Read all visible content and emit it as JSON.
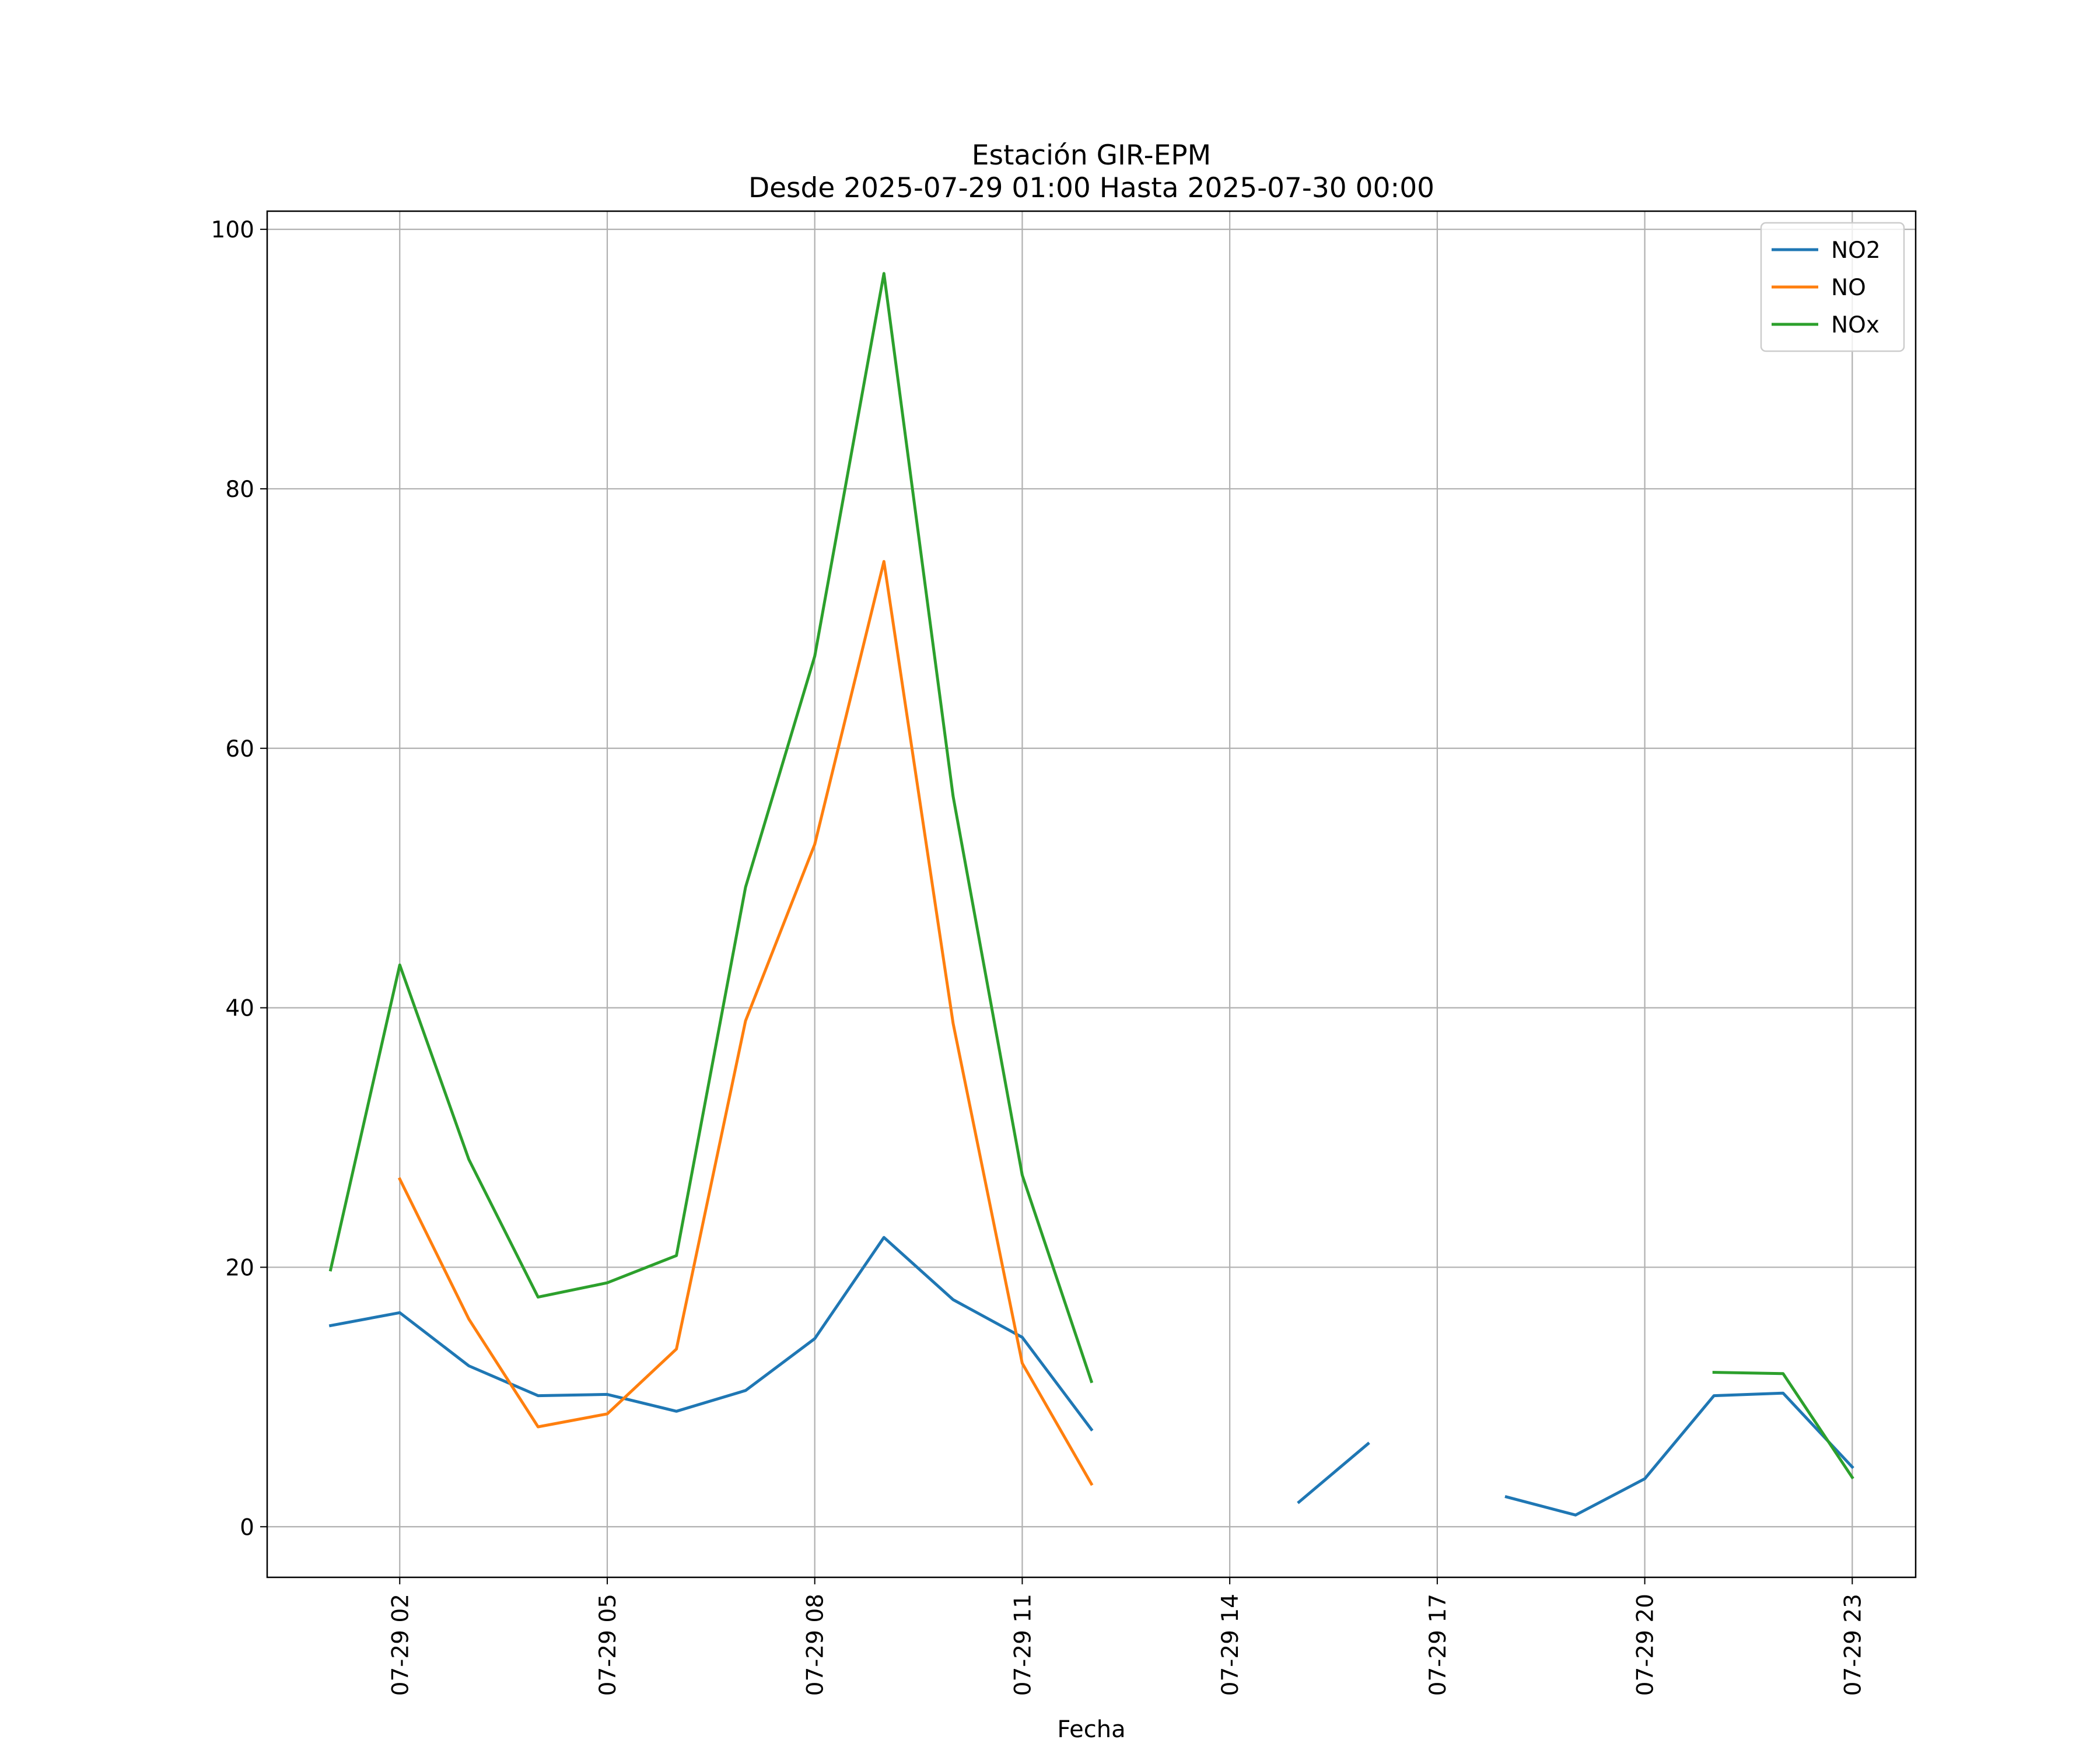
{
  "chart_data": {
    "type": "line",
    "title": "Estación GIR-EPM",
    "subtitle": "Desde 2025-07-29 01:00 Hasta 2025-07-30 00:00",
    "xlabel": "Fecha",
    "ylabel": "",
    "x": [
      "2025-07-29 01:00",
      "2025-07-29 02:00",
      "2025-07-29 03:00",
      "2025-07-29 04:00",
      "2025-07-29 05:00",
      "2025-07-29 06:00",
      "2025-07-29 07:00",
      "2025-07-29 08:00",
      "2025-07-29 09:00",
      "2025-07-29 10:00",
      "2025-07-29 11:00",
      "2025-07-29 12:00",
      "2025-07-29 13:00",
      "2025-07-29 14:00",
      "2025-07-29 15:00",
      "2025-07-29 16:00",
      "2025-07-29 17:00",
      "2025-07-29 18:00",
      "2025-07-29 19:00",
      "2025-07-29 20:00",
      "2025-07-29 21:00",
      "2025-07-29 22:00",
      "2025-07-29 23:00"
    ],
    "xlim": [
      "2025-07-29 00:05",
      "2025-07-29 23:55"
    ],
    "xticks": [
      "07-29 02",
      "07-29 05",
      "07-29 08",
      "07-29 11",
      "07-29 14",
      "07-29 17",
      "07-29 20",
      "07-29 23"
    ],
    "ylim": [
      -3.9,
      101.4
    ],
    "yticks": [
      "0",
      "20",
      "40",
      "60",
      "80",
      "100"
    ],
    "grid": true,
    "legend_position": "top-right",
    "series": [
      {
        "name": "NO2",
        "color": "#1f77b4",
        "values": [
          15.5,
          16.5,
          12.4,
          10.1,
          10.2,
          8.9,
          10.5,
          14.5,
          22.3,
          17.5,
          14.6,
          7.5,
          null,
          null,
          1.9,
          6.4,
          null,
          2.3,
          0.9,
          3.7,
          10.1,
          10.3,
          4.6
        ]
      },
      {
        "name": "NO",
        "color": "#ff7f0e",
        "values": [
          null,
          26.8,
          16.0,
          7.7,
          8.7,
          13.7,
          39.0,
          52.6,
          74.4,
          38.8,
          12.6,
          3.3,
          null,
          null,
          null,
          null,
          null,
          null,
          null,
          null,
          null,
          null,
          null
        ]
      },
      {
        "name": "NOx",
        "color": "#2ca02c",
        "values": [
          19.8,
          43.3,
          28.3,
          17.7,
          18.8,
          20.9,
          49.3,
          67.1,
          96.6,
          56.3,
          27.1,
          11.2,
          null,
          null,
          null,
          null,
          null,
          null,
          null,
          null,
          11.9,
          11.8,
          3.8
        ]
      }
    ]
  }
}
